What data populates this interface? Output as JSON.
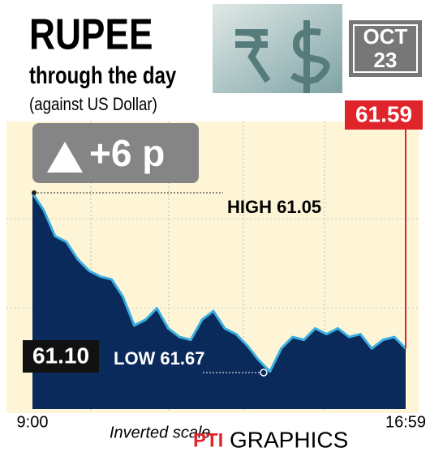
{
  "chart_data": {
    "type": "area",
    "title": "RUPEE",
    "subtitle": "through the day",
    "note": "(against US Dollar)",
    "date": {
      "month": "OCT",
      "day": "23"
    },
    "change": "+6 p",
    "categories": [
      "9:00",
      null,
      null,
      null,
      null,
      null,
      null,
      null,
      null,
      null,
      null,
      null,
      null,
      null,
      null,
      null,
      null,
      null,
      null,
      null,
      null,
      null,
      null,
      null,
      null,
      null,
      null,
      null,
      null,
      null,
      null,
      null,
      null,
      "16:59"
    ],
    "values": [
      61.05,
      61.11,
      61.2,
      61.22,
      61.28,
      61.32,
      61.34,
      61.35,
      61.41,
      61.51,
      61.49,
      61.45,
      61.52,
      61.55,
      61.56,
      61.49,
      61.46,
      61.52,
      61.54,
      61.58,
      61.63,
      61.67,
      61.59,
      61.55,
      61.56,
      61.52,
      61.54,
      61.52,
      61.55,
      61.54,
      61.59,
      61.56,
      61.55,
      61.59
    ],
    "ylim": [
      60.83,
      61.8
    ],
    "inverted": true,
    "line_color": "#3aaee0",
    "fill_color": "#0b2a5c",
    "annotations": {
      "high": "HIGH 61.05",
      "low": "LOW 61.67",
      "open": "61.10",
      "close": "61.59"
    },
    "x_note": "Inverted scale",
    "credit": {
      "brand": "PTI",
      "text": "GRAPHICS"
    }
  }
}
